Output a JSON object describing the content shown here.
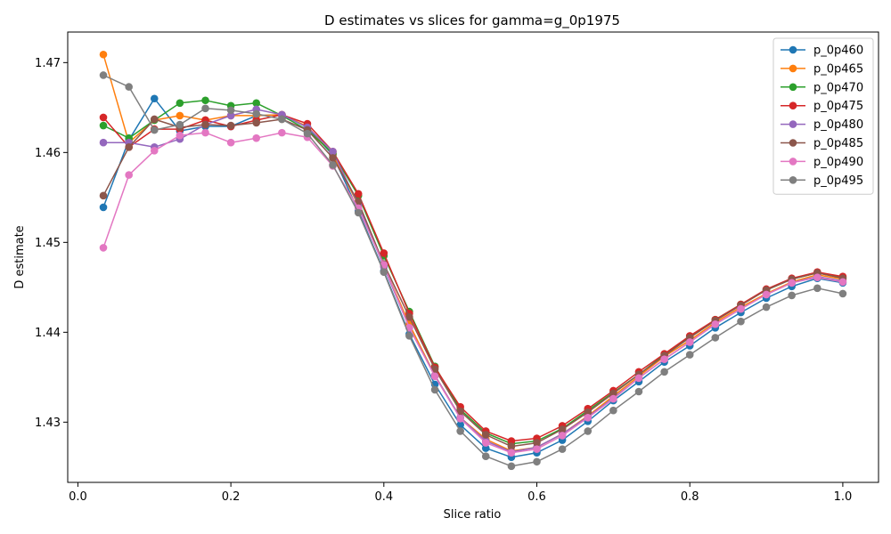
{
  "chart_data": {
    "type": "line",
    "title": "D estimates vs slices for gamma=g_0p1975",
    "xlabel": "Slice ratio",
    "ylabel": "D estimate",
    "xlim": [
      -0.0133,
      1.0467
    ],
    "ylim": [
      1.4233,
      1.4734
    ],
    "xticks": [
      0.0,
      0.2,
      0.4,
      0.6,
      0.8,
      1.0
    ],
    "xtick_labels": [
      "0.0",
      "0.2",
      "0.4",
      "0.6",
      "0.8",
      "1.0"
    ],
    "yticks": [
      1.43,
      1.44,
      1.45,
      1.46,
      1.47
    ],
    "ytick_labels": [
      "1.43",
      "1.44",
      "1.45",
      "1.46",
      "1.47"
    ],
    "grid": false,
    "legend_position": "top-right",
    "x": [
      0.0333,
      0.0667,
      0.1,
      0.1333,
      0.1667,
      0.2,
      0.2333,
      0.2667,
      0.3,
      0.3333,
      0.3667,
      0.4,
      0.4333,
      0.4667,
      0.5,
      0.5333,
      0.5667,
      0.6,
      0.6333,
      0.6667,
      0.7,
      0.7333,
      0.7667,
      0.8,
      0.8333,
      0.8667,
      0.9,
      0.9333,
      0.9667,
      1.0
    ],
    "series": [
      {
        "name": "p_0p460",
        "color": "#1f77b4",
        "values": [
          1.4539,
          1.4614,
          1.466,
          1.4624,
          1.4629,
          1.4629,
          1.4641,
          1.4642,
          1.4628,
          1.4597,
          1.4535,
          1.4468,
          1.4398,
          1.4342,
          1.4297,
          1.4271,
          1.4261,
          1.4266,
          1.428,
          1.4301,
          1.4324,
          1.4345,
          1.4367,
          1.4385,
          1.4405,
          1.4422,
          1.4438,
          1.4451,
          1.446,
          1.4455
        ]
      },
      {
        "name": "p_0p465",
        "color": "#ff7f0e",
        "values": [
          1.4709,
          1.4611,
          1.4636,
          1.4641,
          1.4636,
          1.4641,
          1.4641,
          1.4642,
          1.4629,
          1.4598,
          1.4541,
          1.4474,
          1.4409,
          1.4352,
          1.4305,
          1.4281,
          1.4268,
          1.4272,
          1.4287,
          1.4307,
          1.4329,
          1.4351,
          1.4373,
          1.4391,
          1.4411,
          1.4428,
          1.4443,
          1.4456,
          1.4464,
          1.4459
        ]
      },
      {
        "name": "p_0p470",
        "color": "#2ca02c",
        "values": [
          1.463,
          1.4616,
          1.4636,
          1.4655,
          1.4658,
          1.4652,
          1.4655,
          1.4641,
          1.4625,
          1.4599,
          1.4552,
          1.4485,
          1.4423,
          1.4362,
          1.4314,
          1.4288,
          1.4276,
          1.4279,
          1.4293,
          1.4313,
          1.4333,
          1.4353,
          1.4375,
          1.4395,
          1.4414,
          1.4431,
          1.4447,
          1.4459,
          1.4466,
          1.4461
        ]
      },
      {
        "name": "p_0p475",
        "color": "#d62728",
        "values": [
          1.4639,
          1.4606,
          1.4626,
          1.4626,
          1.4636,
          1.4629,
          1.4636,
          1.4642,
          1.4632,
          1.4601,
          1.4554,
          1.4488,
          1.4421,
          1.4361,
          1.4317,
          1.429,
          1.4279,
          1.4282,
          1.4296,
          1.4315,
          1.4335,
          1.4356,
          1.4376,
          1.4396,
          1.4414,
          1.4431,
          1.4448,
          1.446,
          1.4467,
          1.4462
        ]
      },
      {
        "name": "p_0p480",
        "color": "#9467bd",
        "values": [
          1.4611,
          1.4611,
          1.4606,
          1.4615,
          1.4631,
          1.4641,
          1.4648,
          1.4642,
          1.4628,
          1.4601,
          1.4542,
          1.4473,
          1.4405,
          1.4352,
          1.4305,
          1.4279,
          1.4267,
          1.4272,
          1.4287,
          1.4306,
          1.4327,
          1.4349,
          1.437,
          1.4389,
          1.4409,
          1.4426,
          1.4442,
          1.4455,
          1.4462,
          1.4457
        ]
      },
      {
        "name": "p_0p485",
        "color": "#8c564b",
        "values": [
          1.4552,
          1.4606,
          1.4637,
          1.4628,
          1.4631,
          1.463,
          1.4633,
          1.4637,
          1.4625,
          1.4594,
          1.4545,
          1.4476,
          1.4417,
          1.4359,
          1.4312,
          1.4286,
          1.4273,
          1.4277,
          1.4292,
          1.4311,
          1.4332,
          1.4353,
          1.4374,
          1.4394,
          1.4413,
          1.443,
          1.4447,
          1.4459,
          1.4466,
          1.446
        ]
      },
      {
        "name": "p_0p490",
        "color": "#e377c2",
        "values": [
          1.4494,
          1.4575,
          1.4602,
          1.4619,
          1.4622,
          1.4611,
          1.4616,
          1.4622,
          1.4617,
          1.4585,
          1.4538,
          1.4475,
          1.4405,
          1.4351,
          1.4304,
          1.4277,
          1.4266,
          1.427,
          1.4285,
          1.4305,
          1.4326,
          1.4349,
          1.437,
          1.4389,
          1.4409,
          1.4426,
          1.4442,
          1.4455,
          1.4461,
          1.4456
        ]
      },
      {
        "name": "p_0p495",
        "color": "#7f7f7f",
        "values": [
          1.4686,
          1.4673,
          1.4625,
          1.4631,
          1.4649,
          1.4647,
          1.4643,
          1.4637,
          1.4621,
          1.4586,
          1.4533,
          1.4467,
          1.4396,
          1.4336,
          1.429,
          1.4262,
          1.4251,
          1.4256,
          1.427,
          1.429,
          1.4313,
          1.4334,
          1.4356,
          1.4375,
          1.4394,
          1.4412,
          1.4428,
          1.4441,
          1.4449,
          1.4443
        ]
      }
    ]
  }
}
